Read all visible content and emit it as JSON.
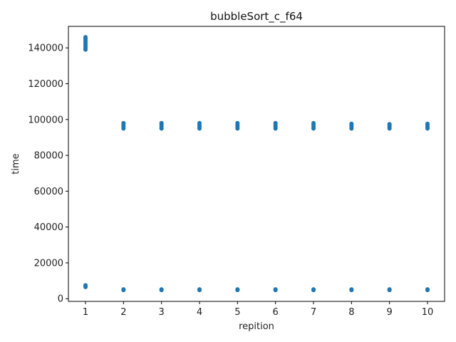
{
  "chart_data": {
    "type": "scatter",
    "title": "bubbleSort_c_f64",
    "xlabel": "repition",
    "ylabel": "time",
    "xlim": [
      0.55,
      10.45
    ],
    "ylim": [
      -1500,
      152000
    ],
    "xticks": [
      1,
      2,
      3,
      4,
      5,
      6,
      7,
      8,
      9,
      10
    ],
    "yticks": [
      0,
      20000,
      40000,
      60000,
      80000,
      100000,
      120000,
      140000
    ],
    "ytick_labels": [
      "0",
      "20000",
      "40000",
      "60000",
      "80000",
      "100000",
      "120000",
      "140000"
    ],
    "grid": false,
    "legend": "none",
    "marker_color": "#1f77b4",
    "series": [
      {
        "points": [
          {
            "x": 1,
            "y": 139000
          },
          {
            "x": 1,
            "y": 140000
          },
          {
            "x": 1,
            "y": 141000
          },
          {
            "x": 1,
            "y": 142000
          },
          {
            "x": 1,
            "y": 143000
          },
          {
            "x": 1,
            "y": 144000
          },
          {
            "x": 1,
            "y": 145000
          },
          {
            "x": 1,
            "y": 146000
          },
          {
            "x": 1,
            "y": 6500
          },
          {
            "x": 1,
            "y": 7000
          },
          {
            "x": 1,
            "y": 7500
          },
          {
            "x": 2,
            "y": 95000
          },
          {
            "x": 2,
            "y": 96000
          },
          {
            "x": 2,
            "y": 97000
          },
          {
            "x": 2,
            "y": 98000
          },
          {
            "x": 2,
            "y": 4800
          },
          {
            "x": 2,
            "y": 5200
          },
          {
            "x": 3,
            "y": 95000
          },
          {
            "x": 3,
            "y": 96000
          },
          {
            "x": 3,
            "y": 97000
          },
          {
            "x": 3,
            "y": 98000
          },
          {
            "x": 3,
            "y": 4800
          },
          {
            "x": 3,
            "y": 5200
          },
          {
            "x": 4,
            "y": 95000
          },
          {
            "x": 4,
            "y": 96000
          },
          {
            "x": 4,
            "y": 97000
          },
          {
            "x": 4,
            "y": 98000
          },
          {
            "x": 4,
            "y": 4800
          },
          {
            "x": 4,
            "y": 5200
          },
          {
            "x": 5,
            "y": 95000
          },
          {
            "x": 5,
            "y": 96000
          },
          {
            "x": 5,
            "y": 97000
          },
          {
            "x": 5,
            "y": 98000
          },
          {
            "x": 5,
            "y": 4800
          },
          {
            "x": 5,
            "y": 5200
          },
          {
            "x": 6,
            "y": 95000
          },
          {
            "x": 6,
            "y": 96000
          },
          {
            "x": 6,
            "y": 97000
          },
          {
            "x": 6,
            "y": 98000
          },
          {
            "x": 6,
            "y": 4800
          },
          {
            "x": 6,
            "y": 5200
          },
          {
            "x": 7,
            "y": 95000
          },
          {
            "x": 7,
            "y": 96000
          },
          {
            "x": 7,
            "y": 97000
          },
          {
            "x": 7,
            "y": 98000
          },
          {
            "x": 7,
            "y": 4800
          },
          {
            "x": 7,
            "y": 5200
          },
          {
            "x": 8,
            "y": 95000
          },
          {
            "x": 8,
            "y": 96000
          },
          {
            "x": 8,
            "y": 97000
          },
          {
            "x": 8,
            "y": 97600
          },
          {
            "x": 8,
            "y": 4800
          },
          {
            "x": 8,
            "y": 5200
          },
          {
            "x": 9,
            "y": 95000
          },
          {
            "x": 9,
            "y": 96000
          },
          {
            "x": 9,
            "y": 97000
          },
          {
            "x": 9,
            "y": 97400
          },
          {
            "x": 9,
            "y": 4800
          },
          {
            "x": 9,
            "y": 5200
          },
          {
            "x": 10,
            "y": 95000
          },
          {
            "x": 10,
            "y": 96000
          },
          {
            "x": 10,
            "y": 97000
          },
          {
            "x": 10,
            "y": 97600
          },
          {
            "x": 10,
            "y": 4800
          },
          {
            "x": 10,
            "y": 5200
          }
        ]
      }
    ]
  }
}
